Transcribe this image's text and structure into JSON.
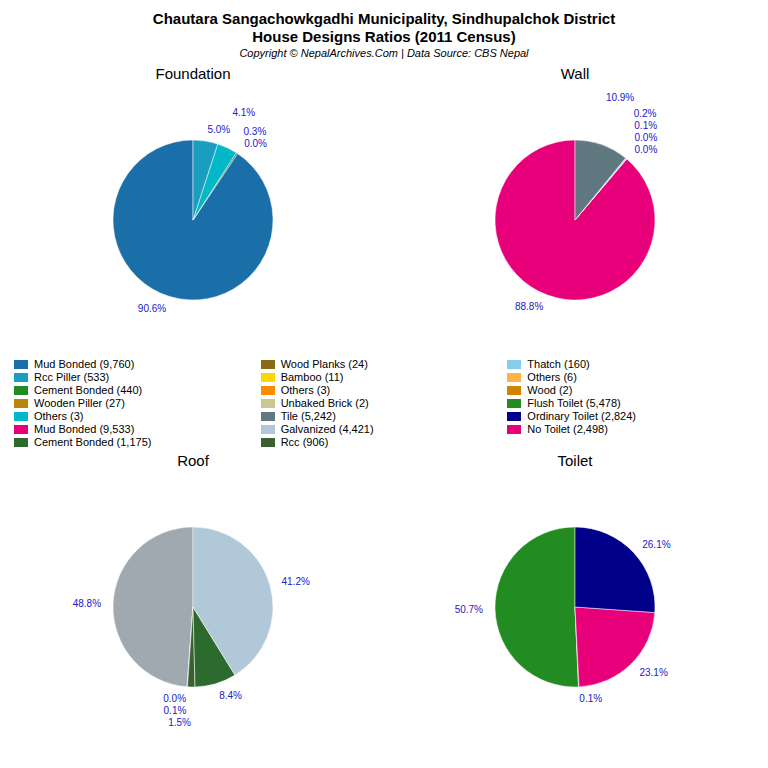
{
  "title": "Chautara Sangachowkgadhi Municipality, Sindhupalchok District",
  "subtitle": "House Designs Ratios (2011 Census)",
  "annotations": [
    "Copyright © NepalArchives.Com | Data Source: CBS Nepal"
  ],
  "legend_entries": [
    {
      "name": "Mud Bonded (9,760)",
      "color": "#1a6fa8"
    },
    {
      "name": "Rcc Piller (533)",
      "color": "#1a9ec0"
    },
    {
      "name": "Cement Bonded (440)",
      "color": "#228b22"
    },
    {
      "name": "Wooden Piller (27)",
      "color": "#b8860b"
    },
    {
      "name": "Others (3)",
      "color": "#00b8c8"
    },
    {
      "name": "Mud Bonded (9,533)",
      "color": "#e8007a"
    },
    {
      "name": "Cement Bonded (1,175)",
      "color": "#2d6a2d"
    },
    {
      "name": "Wood Planks (24)",
      "color": "#8b6914"
    },
    {
      "name": "Bamboo (11)",
      "color": "#ffd700"
    },
    {
      "name": "Others (3)",
      "color": "#ff8c00"
    },
    {
      "name": "Unbaked Brick (2)",
      "color": "#c8c890"
    },
    {
      "name": "Tile (5,242)",
      "color": "#607880"
    },
    {
      "name": "Galvanized (4,421)",
      "color": "#b0c8d8"
    },
    {
      "name": "Rcc (906)",
      "color": "#3a6030"
    },
    {
      "name": "Thatch (160)",
      "color": "#87ceeb"
    },
    {
      "name": "Others (6)",
      "color": "#ffb347"
    },
    {
      "name": "Wood (2)",
      "color": "#cd8500"
    },
    {
      "name": "Flush Toilet (5,478)",
      "color": "#228b22"
    },
    {
      "name": "Ordinary Toilet (2,824)",
      "color": "#00008b"
    },
    {
      "name": "No Toilet (2,498)",
      "color": "#e8007a"
    }
  ],
  "chart_data": [
    {
      "type": "pie",
      "title": "Foundation",
      "values": [
        90.6,
        0.0,
        0.3,
        4.1,
        5.0
      ],
      "value_labels": [
        "90.6%",
        "0.0%",
        "0.3%",
        "4.1%",
        "5.0%"
      ],
      "colors": [
        "#1a6fa8",
        "#b8860b",
        "#2d6a2d",
        "#00b8c8",
        "#1a9ec0"
      ],
      "data_labels": true
    },
    {
      "type": "pie",
      "title": "Wall",
      "values": [
        88.8,
        0.0,
        0.0,
        0.1,
        0.2,
        10.9
      ],
      "value_labels": [
        "88.8%",
        "0.0%",
        "0.0%",
        "0.1%",
        "0.2%",
        "10.9%"
      ],
      "colors": [
        "#e8007a",
        "#ffd700",
        "#c8a000",
        "#708090",
        "#87ceeb",
        "#607880"
      ],
      "data_labels": true
    },
    {
      "type": "pie",
      "title": "Roof",
      "values": [
        48.8,
        0.0,
        0.1,
        1.5,
        8.4,
        41.2
      ],
      "value_labels": [
        "48.8%",
        "0.0%",
        "0.1%",
        "1.5%",
        "8.4%",
        "41.2%"
      ],
      "colors": [
        "#a0a8b0",
        "#2d6a2d",
        "#1a9ec0",
        "#3a6030",
        "#2d6a2d",
        "#b0c8d8"
      ],
      "data_labels": true
    },
    {
      "type": "pie",
      "title": "Toilet",
      "values": [
        50.7,
        0.1,
        23.1,
        26.1
      ],
      "value_labels": [
        "50.7%",
        "0.1%",
        "23.1%",
        "26.1%"
      ],
      "colors": [
        "#228b22",
        "#3a8a3a",
        "#e8007a",
        "#00008b"
      ],
      "data_labels": true
    }
  ]
}
